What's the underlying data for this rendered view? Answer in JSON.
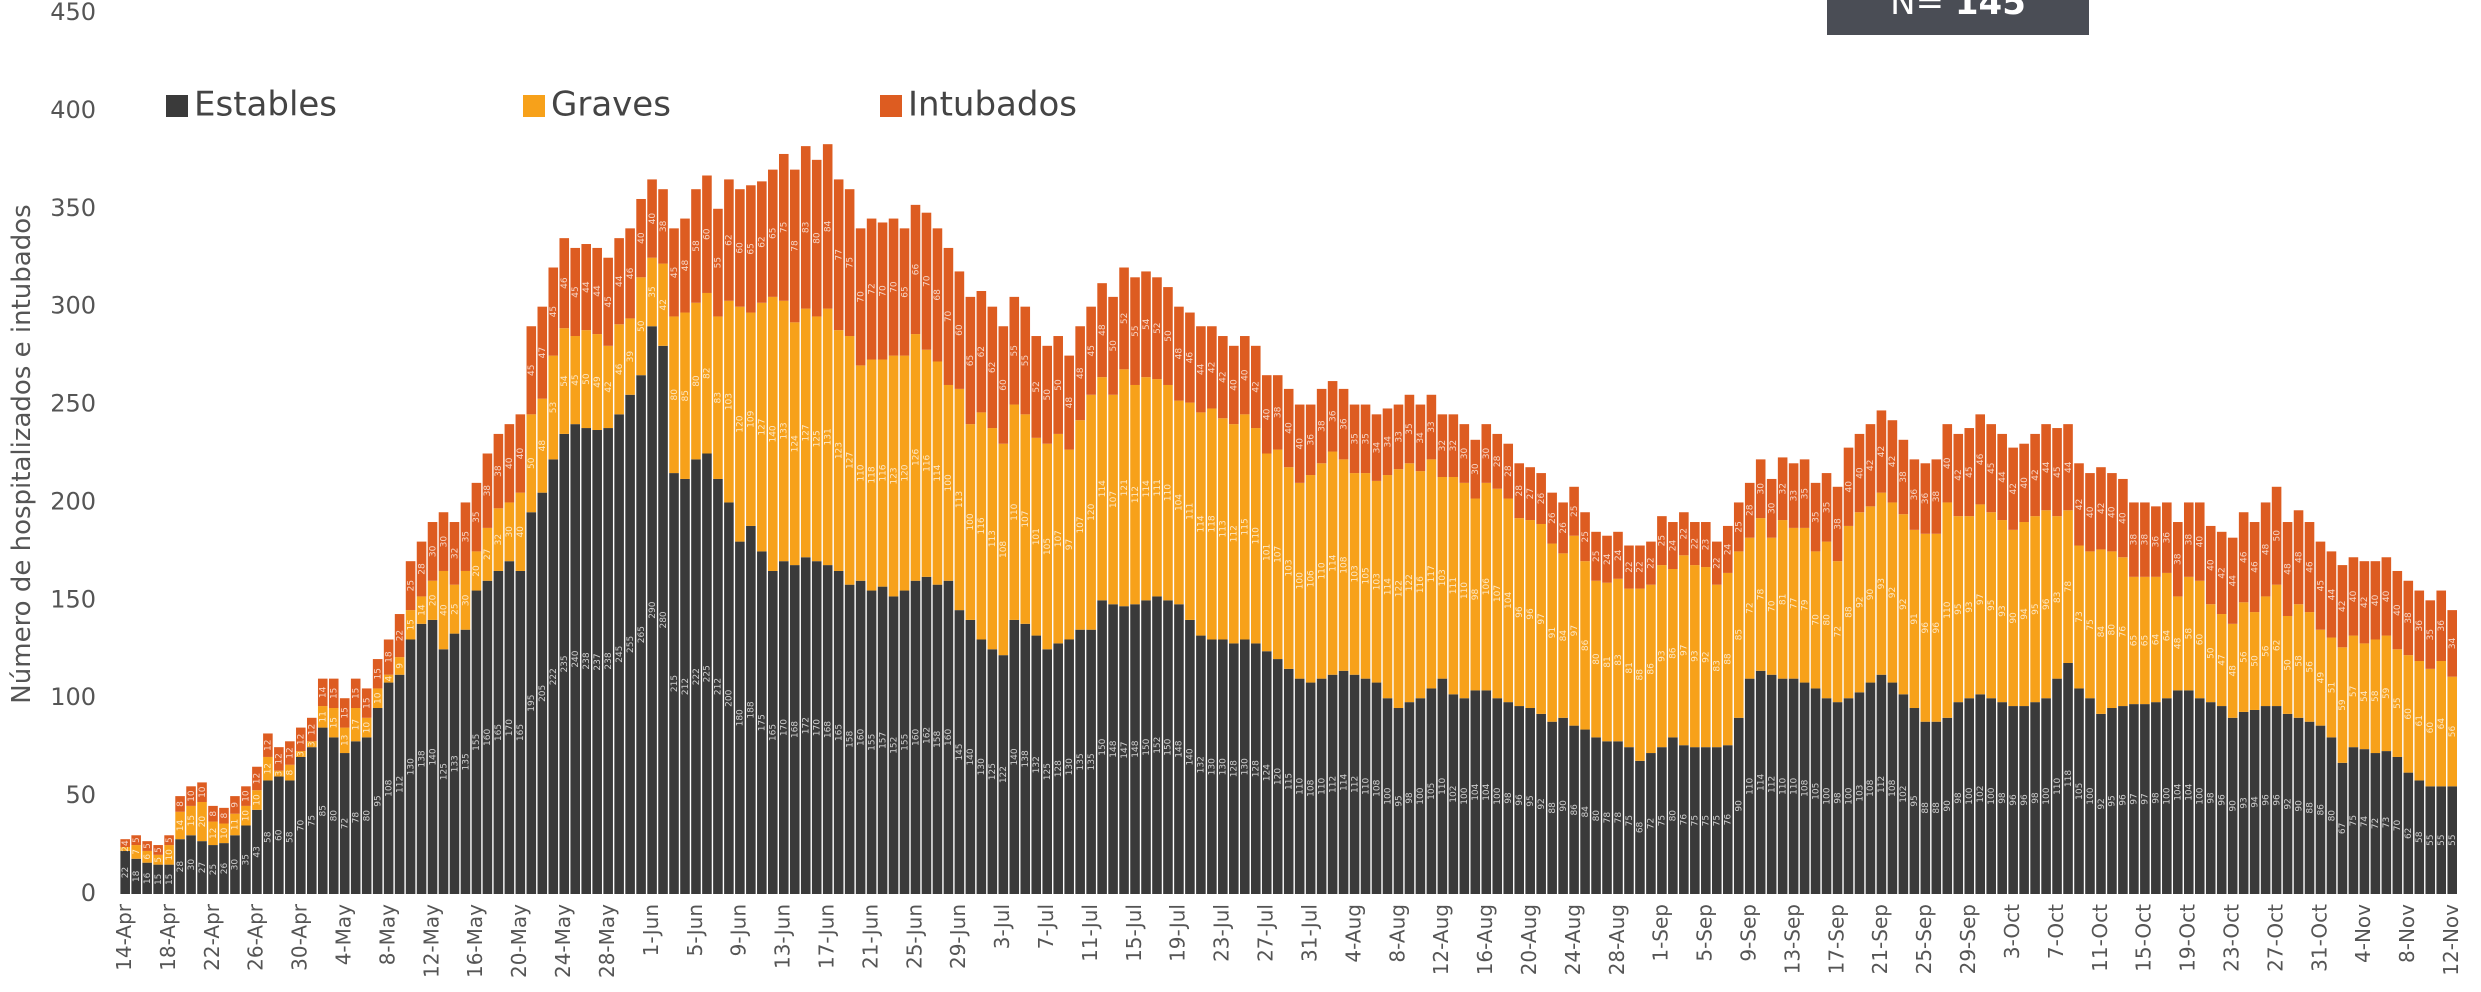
{
  "chart_data": {
    "type": "stacked_bar",
    "y_label": "Número de hospitalizados e intubados",
    "annotation_label": "N=",
    "annotation_value": "145",
    "legend": "top-left",
    "ylim": [
      0,
      450
    ],
    "yticks": [
      0,
      50,
      100,
      150,
      200,
      250,
      300,
      350,
      400,
      450
    ],
    "categories": [
      "14-Apr",
      null,
      null,
      null,
      "18-Apr",
      null,
      null,
      null,
      "22-Apr",
      null,
      null,
      null,
      "26-Apr",
      null,
      null,
      null,
      "30-Apr",
      null,
      null,
      null,
      "4-May",
      null,
      null,
      null,
      "8-May",
      null,
      null,
      null,
      "12-May",
      null,
      null,
      null,
      "16-May",
      null,
      null,
      null,
      "20-May",
      null,
      null,
      null,
      "24-May",
      null,
      null,
      null,
      "28-May",
      null,
      null,
      null,
      "1-Jun",
      null,
      null,
      null,
      "5-Jun",
      null,
      null,
      null,
      "9-Jun",
      null,
      null,
      null,
      "13-Jun",
      null,
      null,
      null,
      "17-Jun",
      null,
      null,
      null,
      "21-Jun",
      null,
      null,
      null,
      "25-Jun",
      null,
      null,
      null,
      "29-Jun",
      null,
      null,
      null,
      "3-Jul",
      null,
      null,
      null,
      "7-Jul",
      null,
      null,
      null,
      "11-Jul",
      null,
      null,
      null,
      "15-Jul",
      null,
      null,
      null,
      "19-Jul",
      null,
      null,
      null,
      "23-Jul",
      null,
      null,
      null,
      "27-Jul",
      null,
      null,
      null,
      "31-Jul",
      null,
      null,
      null,
      "4-Aug",
      null,
      null,
      null,
      "8-Aug",
      null,
      null,
      null,
      "12-Aug",
      null,
      null,
      null,
      "16-Aug",
      null,
      null,
      null,
      "20-Aug",
      null,
      null,
      null,
      "24-Aug",
      null,
      null,
      null,
      "28-Aug",
      null,
      null,
      null,
      "1-Sep",
      null,
      null,
      null,
      "5-Sep",
      null,
      null,
      null,
      "9-Sep",
      null,
      null,
      null,
      "13-Sep",
      null,
      null,
      null,
      "17-Sep",
      null,
      null,
      null,
      "21-Sep",
      null,
      null,
      null,
      "25-Sep",
      null,
      null,
      null,
      "29-Sep",
      null,
      null,
      null,
      "3-Oct",
      null,
      null,
      null,
      "7-Oct",
      null,
      null,
      null,
      "11-Oct",
      null,
      null,
      null,
      "15-Oct",
      null,
      null,
      null,
      "19-Oct",
      null,
      null,
      null,
      "23-Oct",
      null,
      null,
      null,
      "27-Oct",
      null,
      null,
      null,
      "31-Oct",
      null,
      null,
      null,
      "4-Nov",
      null,
      null,
      null,
      "8-Nov",
      null,
      null,
      null,
      "12-Nov"
    ],
    "series": [
      {
        "name": "Estables",
        "color": "#3a3a3a",
        "values": [
          22,
          18,
          16,
          15,
          15,
          28,
          30,
          27,
          25,
          26,
          30,
          35,
          43,
          58,
          60,
          58,
          70,
          75,
          85,
          80,
          72,
          78,
          80,
          95,
          108,
          112,
          130,
          138,
          140,
          125,
          133,
          135,
          155,
          160,
          165,
          170,
          165,
          195,
          205,
          222,
          235,
          240,
          238,
          237,
          238,
          245,
          255,
          265,
          290,
          280,
          215,
          212,
          222,
          225,
          212,
          200,
          180,
          188,
          175,
          165,
          170,
          168,
          172,
          170,
          168,
          165,
          158,
          160,
          155,
          157,
          152,
          155,
          160,
          162,
          158,
          160,
          145,
          140,
          130,
          125,
          122,
          140,
          138,
          132,
          125,
          128,
          130,
          135,
          135,
          150,
          148,
          147,
          148,
          150,
          152,
          150,
          148,
          140,
          132,
          130,
          130,
          128,
          130,
          128,
          124,
          120,
          115,
          110,
          108,
          110,
          112,
          114,
          112,
          110,
          108,
          100,
          95,
          98,
          100,
          105,
          110,
          102,
          100,
          104,
          104,
          100,
          98,
          96,
          95,
          92,
          88,
          90,
          86,
          84,
          80,
          78,
          78,
          75,
          68,
          72,
          75,
          80,
          76,
          75,
          75,
          75,
          76,
          90,
          110,
          114,
          112,
          110,
          110,
          108,
          105,
          100,
          98,
          100,
          103,
          108,
          112,
          108,
          102,
          95,
          88,
          88,
          90,
          98,
          100,
          102,
          100,
          98,
          96,
          96,
          98,
          100,
          110,
          118,
          105,
          100,
          92,
          95,
          96,
          97,
          97,
          98,
          100,
          104,
          104,
          100,
          98,
          96,
          90,
          93,
          94,
          96,
          96,
          92,
          90,
          88,
          86,
          80,
          67,
          75,
          74,
          72,
          73,
          70,
          62,
          58,
          55,
          55,
          55
        ]
      },
      {
        "name": "Graves",
        "color": "#f7a11a",
        "values": [
          2,
          7,
          6,
          5,
          10,
          14,
          15,
          20,
          12,
          10,
          11,
          10,
          10,
          12,
          3,
          8,
          3,
          3,
          11,
          15,
          13,
          17,
          10,
          10,
          4,
          9,
          15,
          14,
          20,
          40,
          25,
          30,
          20,
          27,
          32,
          30,
          40,
          50,
          48,
          53,
          54,
          45,
          50,
          49,
          42,
          46,
          39,
          50,
          35,
          42,
          80,
          85,
          80,
          82,
          83,
          103,
          120,
          109,
          127,
          140,
          133,
          124,
          127,
          125,
          131,
          123,
          127,
          110,
          118,
          116,
          123,
          120,
          126,
          116,
          114,
          100,
          113,
          100,
          116,
          113,
          108,
          110,
          107,
          101,
          105,
          107,
          97,
          107,
          120,
          114,
          107,
          121,
          112,
          114,
          111,
          110,
          104,
          111,
          114,
          118,
          113,
          112,
          115,
          110,
          101,
          107,
          103,
          100,
          106,
          110,
          114,
          108,
          103,
          105,
          103,
          114,
          122,
          122,
          116,
          117,
          103,
          111,
          110,
          98,
          106,
          107,
          104,
          96,
          96,
          97,
          91,
          84,
          97,
          86,
          80,
          81,
          83,
          81,
          88,
          86,
          93,
          86,
          97,
          93,
          92,
          83,
          88,
          85,
          72,
          78,
          70,
          81,
          77,
          79,
          70,
          80,
          72,
          88,
          92,
          90,
          93,
          92,
          92,
          91,
          96,
          96,
          110,
          95,
          93,
          97,
          95,
          93,
          90,
          94,
          95,
          96,
          83,
          78,
          73,
          75,
          84,
          80,
          76,
          65,
          65,
          64,
          64,
          48,
          58,
          60,
          50,
          47,
          48,
          56,
          50,
          56,
          62,
          50,
          58,
          56,
          49,
          51,
          59,
          57,
          54,
          58,
          59,
          55,
          60,
          61,
          60,
          64,
          56
        ]
      },
      {
        "name": "Intubados",
        "color": "#dd5c21",
        "values": [
          4,
          5,
          5,
          5,
          5,
          8,
          10,
          10,
          8,
          8,
          9,
          10,
          12,
          12,
          12,
          12,
          12,
          12,
          14,
          15,
          15,
          15,
          15,
          15,
          18,
          22,
          25,
          28,
          30,
          30,
          32,
          35,
          35,
          38,
          38,
          40,
          40,
          45,
          47,
          45,
          46,
          45,
          44,
          44,
          45,
          44,
          46,
          40,
          40,
          38,
          45,
          48,
          58,
          60,
          55,
          62,
          60,
          65,
          62,
          65,
          75,
          78,
          83,
          80,
          84,
          77,
          75,
          70,
          72,
          70,
          70,
          65,
          66,
          70,
          68,
          70,
          60,
          65,
          62,
          62,
          60,
          55,
          55,
          52,
          50,
          50,
          48,
          48,
          45,
          48,
          50,
          52,
          55,
          54,
          52,
          50,
          48,
          46,
          44,
          42,
          42,
          40,
          40,
          42,
          40,
          38,
          40,
          40,
          36,
          38,
          36,
          36,
          35,
          35,
          34,
          34,
          33,
          35,
          34,
          33,
          32,
          32,
          30,
          30,
          30,
          28,
          28,
          28,
          27,
          26,
          26,
          26,
          25,
          25,
          25,
          24,
          24,
          22,
          22,
          22,
          25,
          24,
          22,
          22,
          23,
          22,
          24,
          25,
          28,
          30,
          30,
          32,
          33,
          35,
          35,
          35,
          38,
          40,
          40,
          42,
          42,
          42,
          38,
          36,
          36,
          38,
          40,
          42,
          45,
          46,
          45,
          44,
          42,
          40,
          42,
          44,
          45,
          44,
          42,
          40,
          42,
          40,
          40,
          38,
          38,
          36,
          36,
          38,
          38,
          40,
          40,
          42,
          44,
          46,
          46,
          48,
          50,
          48,
          48,
          46,
          45,
          44,
          42,
          40,
          42,
          40,
          40,
          40,
          38,
          36,
          35,
          36,
          34
        ]
      }
    ]
  }
}
